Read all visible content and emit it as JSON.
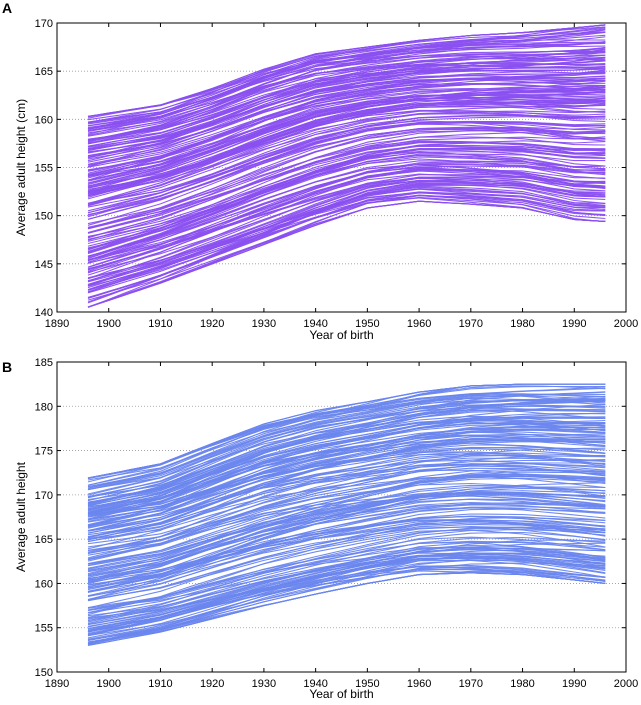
{
  "figure": {
    "panels": [
      "A",
      "B"
    ]
  },
  "chart_data": [
    {
      "panel_label": "A",
      "type": "line",
      "title": "",
      "xlabel": "Year of birth",
      "ylabel": "Average adult height (cm)",
      "xlim": [
        1890,
        2000
      ],
      "ylim": [
        140,
        170
      ],
      "xticks": [
        1890,
        1900,
        1910,
        1920,
        1930,
        1940,
        1950,
        1960,
        1970,
        1980,
        1990,
        2000
      ],
      "yticks": [
        140,
        145,
        150,
        155,
        160,
        165,
        170
      ],
      "grid": "horizontal dotted",
      "line_color": "#8a4ff0",
      "x_range_of_series": [
        1896,
        1996
      ],
      "series_count": 200,
      "envelope": {
        "years": [
          1896,
          1910,
          1920,
          1930,
          1940,
          1950,
          1960,
          1970,
          1980,
          1990,
          1996
        ],
        "upper": [
          160.3,
          161.5,
          163.2,
          165.2,
          166.8,
          167.5,
          168.2,
          168.7,
          169.0,
          169.5,
          169.8
        ],
        "lower": [
          140.5,
          143.0,
          145.0,
          147.0,
          149.0,
          150.8,
          151.5,
          151.2,
          150.8,
          149.6,
          149.4
        ],
        "median": [
          152.0,
          153.8,
          155.2,
          156.5,
          157.8,
          158.8,
          159.6,
          160.0,
          160.2,
          160.3,
          160.3
        ]
      }
    },
    {
      "panel_label": "B",
      "type": "line",
      "title": "",
      "xlabel": "Year of birth",
      "ylabel": "Average adult height",
      "xlim": [
        1890,
        2000
      ],
      "ylim": [
        150,
        185
      ],
      "xticks": [
        1890,
        1900,
        1910,
        1920,
        1930,
        1940,
        1950,
        1960,
        1970,
        1980,
        1990,
        2000
      ],
      "yticks": [
        150,
        155,
        160,
        165,
        170,
        175,
        180,
        185
      ],
      "grid": "horizontal dotted",
      "line_color": "#6a86ee",
      "x_range_of_series": [
        1896,
        1996
      ],
      "series_count": 200,
      "envelope": {
        "years": [
          1896,
          1910,
          1920,
          1930,
          1940,
          1950,
          1960,
          1970,
          1980,
          1990,
          1996
        ],
        "upper": [
          171.9,
          173.5,
          175.8,
          178.0,
          179.5,
          180.5,
          181.6,
          182.3,
          182.5,
          182.5,
          182.5
        ],
        "lower": [
          153.0,
          154.5,
          156.0,
          157.5,
          158.8,
          160.0,
          161.0,
          161.2,
          161.0,
          160.4,
          160.0
        ],
        "median": [
          163.0,
          164.6,
          166.3,
          168.0,
          169.5,
          170.6,
          171.6,
          172.0,
          172.2,
          172.0,
          171.8
        ]
      }
    }
  ]
}
